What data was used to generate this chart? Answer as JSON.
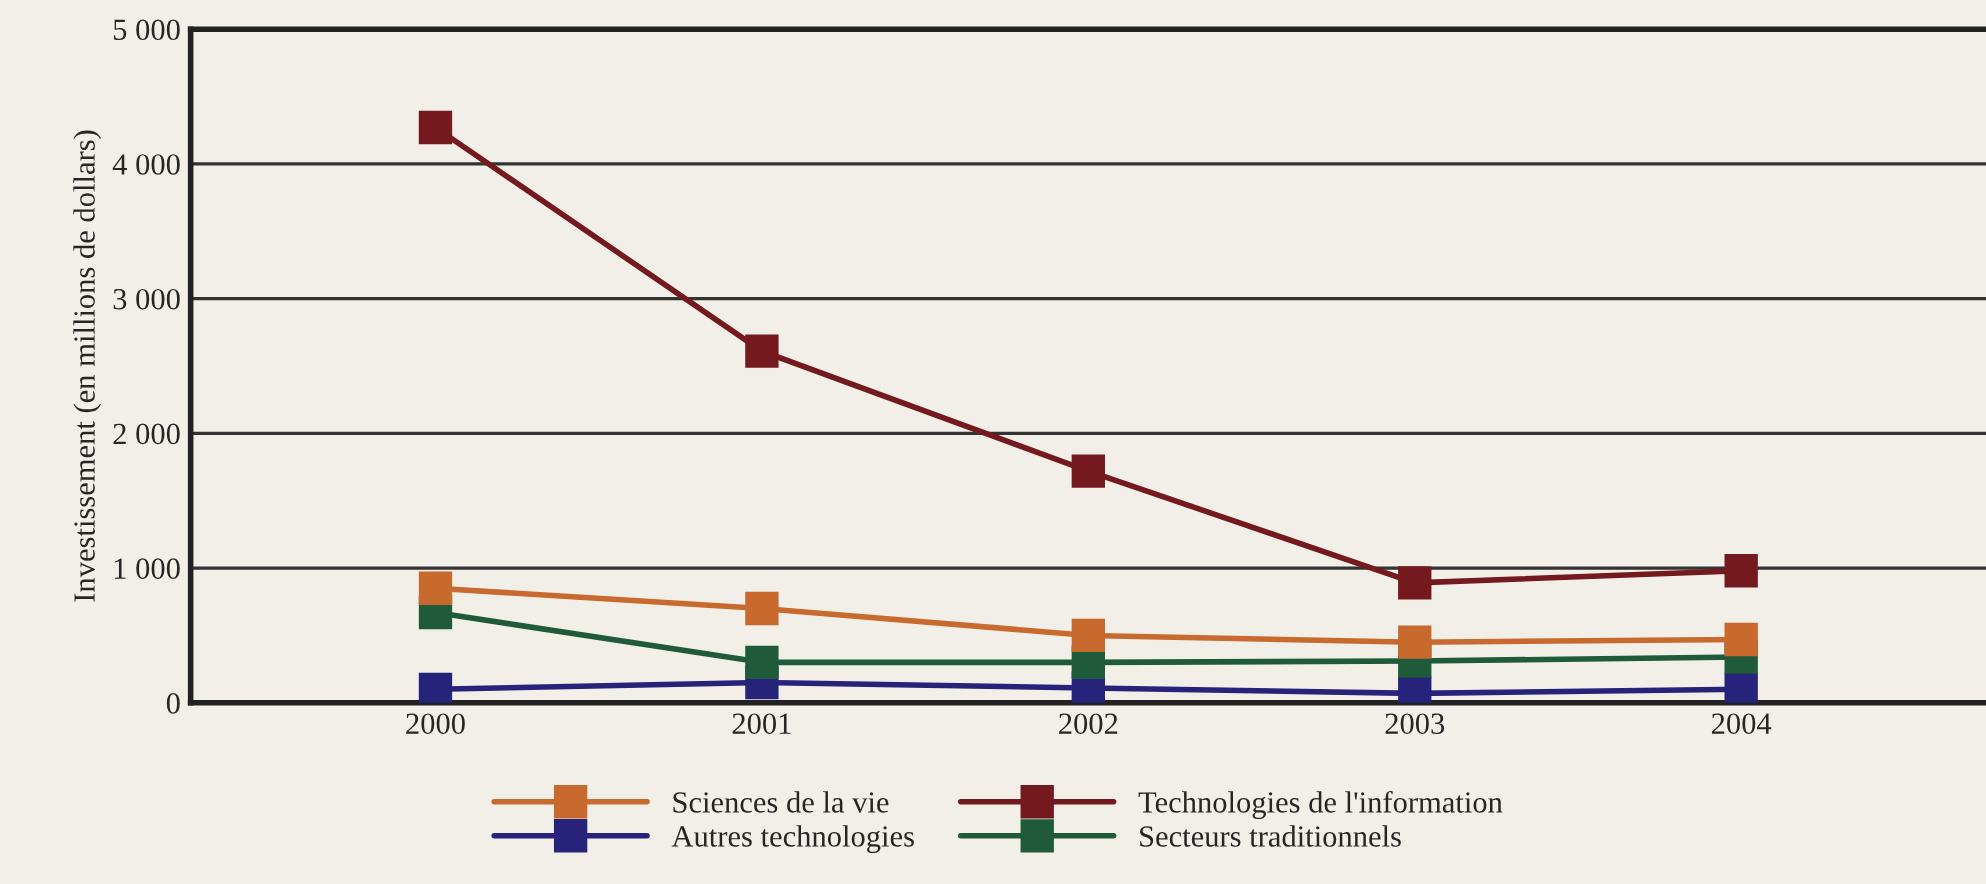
{
  "chart_data": {
    "type": "line",
    "ylabel": "Investissement (en millions de dollars)",
    "categories": [
      "2000",
      "2001",
      "2002",
      "2003",
      "2004"
    ],
    "series": [
      {
        "name": "Sciences de la vie",
        "color": "#c8692e",
        "values": [
          850,
          700,
          500,
          450,
          470
        ]
      },
      {
        "name": "Autres technologies",
        "color": "#27237a",
        "values": [
          100,
          150,
          110,
          70,
          100
        ]
      },
      {
        "name": "Technologies de l'information",
        "color": "#74191e",
        "values": [
          4270,
          2610,
          1720,
          890,
          980
        ]
      },
      {
        "name": "Secteurs traditionnels",
        "color": "#1f5a3a",
        "values": [
          670,
          300,
          300,
          310,
          340
        ]
      }
    ],
    "ylim": [
      0,
      5000
    ],
    "yticks": [
      {
        "value": 0,
        "label": "0"
      },
      {
        "value": 1000,
        "label": "1 000"
      },
      {
        "value": 2000,
        "label": "2 000"
      },
      {
        "value": 3000,
        "label": "3 000"
      },
      {
        "value": 4000,
        "label": "4 000"
      },
      {
        "value": 5000,
        "label": "5 000"
      }
    ],
    "grid": "y",
    "legend": "bottom",
    "marker": "square",
    "line_style": "solid"
  }
}
